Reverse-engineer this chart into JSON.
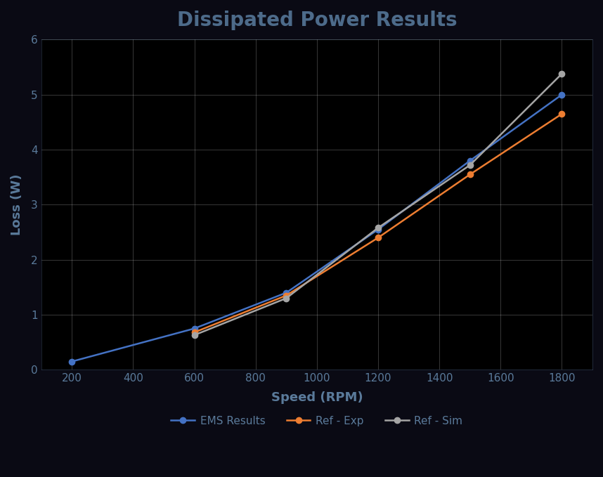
{
  "title": "Dissipated Power Results",
  "xlabel": "Speed (RPM)",
  "ylabel": "Loss (W)",
  "xlim": [
    100,
    1900
  ],
  "ylim": [
    0,
    6
  ],
  "xticks": [
    200,
    400,
    600,
    800,
    1000,
    1200,
    1400,
    1600,
    1800
  ],
  "yticks": [
    0,
    1,
    2,
    3,
    4,
    5,
    6
  ],
  "series": [
    {
      "label": "EMS Results",
      "x": [
        200,
        600,
        900,
        1200,
        1500,
        1800
      ],
      "y": [
        0.15,
        0.75,
        1.4,
        2.55,
        3.8,
        5.0
      ],
      "color": "#4472C4",
      "marker": "o",
      "linewidth": 1.8,
      "markersize": 6
    },
    {
      "label": "Ref - Exp",
      "x": [
        600,
        900,
        1200,
        1500,
        1800
      ],
      "y": [
        0.68,
        1.35,
        2.4,
        3.55,
        4.65
      ],
      "color": "#ED7D31",
      "marker": "o",
      "linewidth": 1.8,
      "markersize": 6
    },
    {
      "label": "Ref - Sim",
      "x": [
        600,
        900,
        1200,
        1500,
        1800
      ],
      "y": [
        0.63,
        1.3,
        2.58,
        3.72,
        5.38
      ],
      "color": "#A5A5A5",
      "marker": "o",
      "linewidth": 1.8,
      "markersize": 6
    }
  ],
  "outer_bg_color": "#0a0a14",
  "plot_bg_color": "#000000",
  "grid_color": "#ffffff",
  "grid_alpha": 0.25,
  "title_color": "#4d6b8a",
  "axis_label_color": "#5a7a9a",
  "tick_label_color": "#5a7a9a",
  "legend_text_color": "#5a7a9a",
  "spine_color": "#5a7a9a",
  "title_fontsize": 20,
  "axis_label_fontsize": 13,
  "tick_fontsize": 11,
  "legend_fontsize": 11
}
